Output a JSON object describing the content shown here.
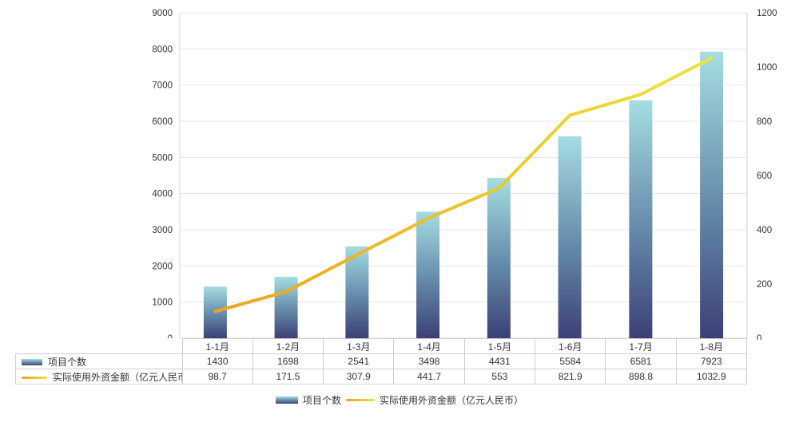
{
  "chart_data": {
    "type": "combo",
    "subtype": [
      "bar",
      "line"
    ],
    "title": "",
    "categories": [
      "1-1月",
      "1-2月",
      "1-3月",
      "1-4月",
      "1-5月",
      "1-6月",
      "1-7月",
      "1-8月"
    ],
    "series": [
      {
        "name": "项目个数",
        "type": "bar",
        "yaxis": "left",
        "values": [
          1430,
          1698,
          2541,
          3498,
          4431,
          5584,
          6581,
          7923
        ]
      },
      {
        "name": "实际使用外资金额（亿元人民币）",
        "type": "line",
        "yaxis": "right",
        "values": [
          98.7,
          171.5,
          307.9,
          441.7,
          553,
          821.9,
          898.8,
          1032.9
        ]
      }
    ],
    "left_axis": {
      "min": 0,
      "max": 9000,
      "step": 1000,
      "tick_labels": [
        "0",
        "1000",
        "2000",
        "3000",
        "4000",
        "5000",
        "6000",
        "7000",
        "8000",
        "9000"
      ]
    },
    "right_axis": {
      "min": 0,
      "max": 1200,
      "step": 200,
      "tick_labels": [
        "0",
        "200",
        "400",
        "600",
        "800",
        "1000",
        "1200"
      ]
    },
    "grid": true,
    "legend_position": "bottom",
    "data_table_shown": true
  },
  "legend": {
    "bar_label": "项目个数",
    "line_label": "实际使用外资金额（亿元人民币）"
  },
  "colors": {
    "bar_gradient_top": "#a5dde2",
    "bar_gradient_mid": "#6389a9",
    "bar_gradient_bottom": "#3c4076",
    "line_gradient_start": "#f0a41e",
    "line_gradient_end": "#e9e53a",
    "gridline": "#e4e4e4",
    "axis_line": "#d6d6d6",
    "table_border": "#cfcfcf",
    "text": "#333333",
    "background": "#ffffff"
  }
}
